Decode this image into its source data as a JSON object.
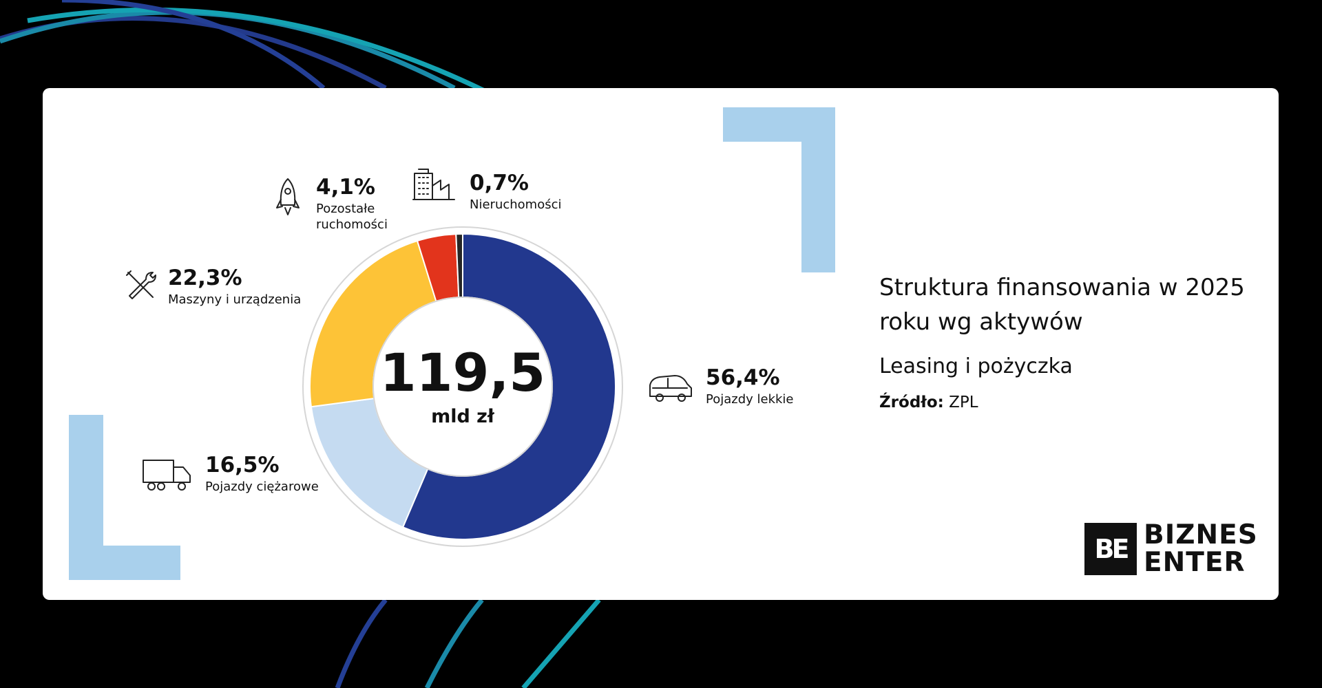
{
  "chart_data": {
    "type": "pie",
    "categories": [
      "Pojazdy lekkie",
      "Pojazdy ciężarowe",
      "Maszyny i urządzenia",
      "Pozostałe ruchomości",
      "Nieruchomości"
    ],
    "values": [
      56.4,
      16.5,
      22.3,
      4.1,
      0.7
    ],
    "value_labels": [
      "56,4%",
      "16,5%",
      "22,3%",
      "4,1%",
      "0,7%"
    ],
    "label_lines": [
      [
        "Pojazdy lekkie"
      ],
      [
        "Pojazdy ciężarowe"
      ],
      [
        "Maszyny i urządzenia"
      ],
      [
        "Pozostałe",
        "ruchomości"
      ],
      [
        "Nieruchomości"
      ]
    ],
    "colors": [
      "#22388e",
      "#c5dbf1",
      "#fdc337",
      "#e2341c",
      "#262626"
    ],
    "icons": [
      "car-icon",
      "truck-icon",
      "tools-icon",
      "rocket-icon",
      "building-icon"
    ],
    "center_value": "119,5",
    "center_unit": "mld zł",
    "title": "Struktura finansowania w 2025 roku wg aktywów",
    "subtitle": "Leasing i pożyczka"
  },
  "source": {
    "label": "Źródło:",
    "value": "ZPL"
  },
  "logo": {
    "mark": "BE",
    "line1": "BIZNES",
    "line2": "ENTER"
  },
  "colors": {
    "accent_light_blue": "#a9d0ec",
    "background": "#000000",
    "card": "#ffffff"
  }
}
